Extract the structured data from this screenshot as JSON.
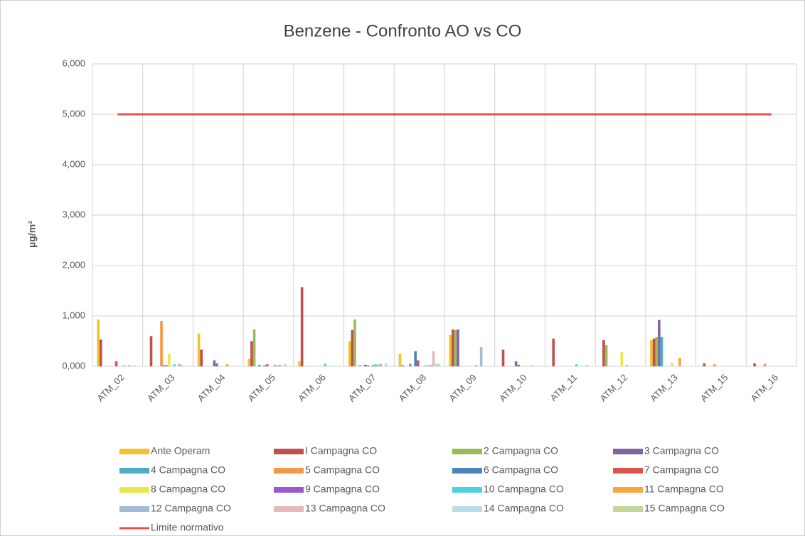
{
  "chart_data": {
    "type": "bar",
    "title": "Benzene - Confronto AO vs CO",
    "y_label": "µg/m³",
    "categories": [
      "ATM_02",
      "ATM_03",
      "ATM_04",
      "ATM_05",
      "ATM_06",
      "ATM_07",
      "ATM_08",
      "ATM_09",
      "ATM_10",
      "ATM_11",
      "ATM_12",
      "ATM_13",
      "ATM_15",
      "ATM_16"
    ],
    "ylim": [
      0,
      6
    ],
    "yticks": [
      {
        "value": 0,
        "label": "0,000"
      },
      {
        "value": 1,
        "label": "1,000"
      },
      {
        "value": 2,
        "label": "2,000"
      },
      {
        "value": 3,
        "label": "3,000"
      },
      {
        "value": 4,
        "label": "4,000"
      },
      {
        "value": 5,
        "label": "5,000"
      },
      {
        "value": 6,
        "label": "6,000"
      }
    ],
    "grid": true,
    "legend": "bottom",
    "series": [
      {
        "name": "Ante Operam",
        "color": "#f2c12e",
        "values": [
          0.93,
          null,
          0.65,
          0.15,
          0.1,
          0.5,
          0.25,
          0.62,
          null,
          null,
          null,
          0.52,
          null,
          null
        ]
      },
      {
        "name": "I Campagna CO",
        "color": "#c0504d",
        "values": [
          0.53,
          0.6,
          0.33,
          0.5,
          1.57,
          0.72,
          0.02,
          0.73,
          0.33,
          0.55,
          0.52,
          0.55,
          0.06,
          0.06
        ]
      },
      {
        "name": "2 Campagna CO",
        "color": "#9bbb59",
        "values": [
          null,
          null,
          null,
          0.73,
          null,
          0.93,
          null,
          0.72,
          null,
          null,
          0.42,
          0.58,
          null,
          null
        ]
      },
      {
        "name": "3 Campagna CO",
        "color": "#8064a2",
        "values": [
          null,
          null,
          null,
          null,
          null,
          null,
          null,
          0.73,
          null,
          null,
          null,
          0.92,
          null,
          null
        ]
      },
      {
        "name": "4 Campagna CO",
        "color": "#4bacc6",
        "values": [
          null,
          null,
          null,
          0.03,
          null,
          0.02,
          0.05,
          null,
          null,
          null,
          null,
          0.58,
          null,
          null
        ]
      },
      {
        "name": "5 Campagna CO",
        "color": "#f79646",
        "values": [
          null,
          0.9,
          null,
          null,
          null,
          null,
          null,
          null,
          null,
          null,
          null,
          null,
          0.04,
          0.05
        ]
      },
      {
        "name": "6 Campagna CO",
        "color": "#4f81bd",
        "values": [
          null,
          0.02,
          0.12,
          0.02,
          null,
          0.03,
          0.3,
          null,
          0.1,
          null,
          null,
          null,
          null,
          null
        ]
      },
      {
        "name": "7 Campagna CO",
        "color": "#d9534f",
        "values": [
          0.1,
          0.02,
          0.06,
          0.04,
          null,
          0.02,
          0.12,
          null,
          0.03,
          null,
          null,
          null,
          null,
          null
        ]
      },
      {
        "name": "8 Campagna CO",
        "color": "#e8e84a",
        "values": [
          null,
          0.25,
          null,
          null,
          null,
          null,
          null,
          null,
          null,
          null,
          0.28,
          0.07,
          null,
          null
        ]
      },
      {
        "name": "9 Campagna CO",
        "color": "#9b59d0",
        "values": [
          null,
          null,
          null,
          null,
          null,
          0.02,
          null,
          null,
          null,
          null,
          null,
          null,
          null,
          null
        ]
      },
      {
        "name": "10 Campagna CO",
        "color": "#4dd0e1",
        "values": [
          0.02,
          0.04,
          null,
          0.03,
          0.05,
          0.04,
          0.02,
          0.02,
          null,
          0.04,
          0.02,
          null,
          null,
          null
        ]
      },
      {
        "name": "11 Campagna CO",
        "color": "#f5a742",
        "values": [
          null,
          null,
          0.04,
          0.02,
          null,
          0.03,
          0.02,
          null,
          null,
          null,
          null,
          0.17,
          null,
          null
        ]
      },
      {
        "name": "12 Campagna CO",
        "color": "#a9b8d8",
        "values": [
          0.02,
          0.05,
          null,
          0.03,
          null,
          0.05,
          0.03,
          0.38,
          0.02,
          null,
          null,
          null,
          null,
          null
        ]
      },
      {
        "name": "13 Campagna CO",
        "color": "#e6b8b7",
        "values": [
          null,
          0.02,
          null,
          null,
          null,
          null,
          0.3,
          null,
          null,
          null,
          null,
          null,
          null,
          null
        ]
      },
      {
        "name": "14 Campagna CO",
        "color": "#b7dde8",
        "values": [
          0.02,
          null,
          null,
          0.05,
          null,
          0.06,
          0.05,
          null,
          null,
          0.03,
          null,
          null,
          null,
          null
        ]
      },
      {
        "name": "15 Campagna CO",
        "color": "#c3d69b",
        "values": [
          null,
          null,
          null,
          null,
          null,
          null,
          0.05,
          null,
          null,
          null,
          null,
          null,
          null,
          null
        ]
      },
      {
        "name": "Limite normativo",
        "type": "line",
        "color": "#e8524a",
        "values": [
          5,
          5,
          5,
          5,
          5,
          5,
          5,
          5,
          5,
          5,
          5,
          5,
          5,
          5
        ]
      }
    ]
  }
}
